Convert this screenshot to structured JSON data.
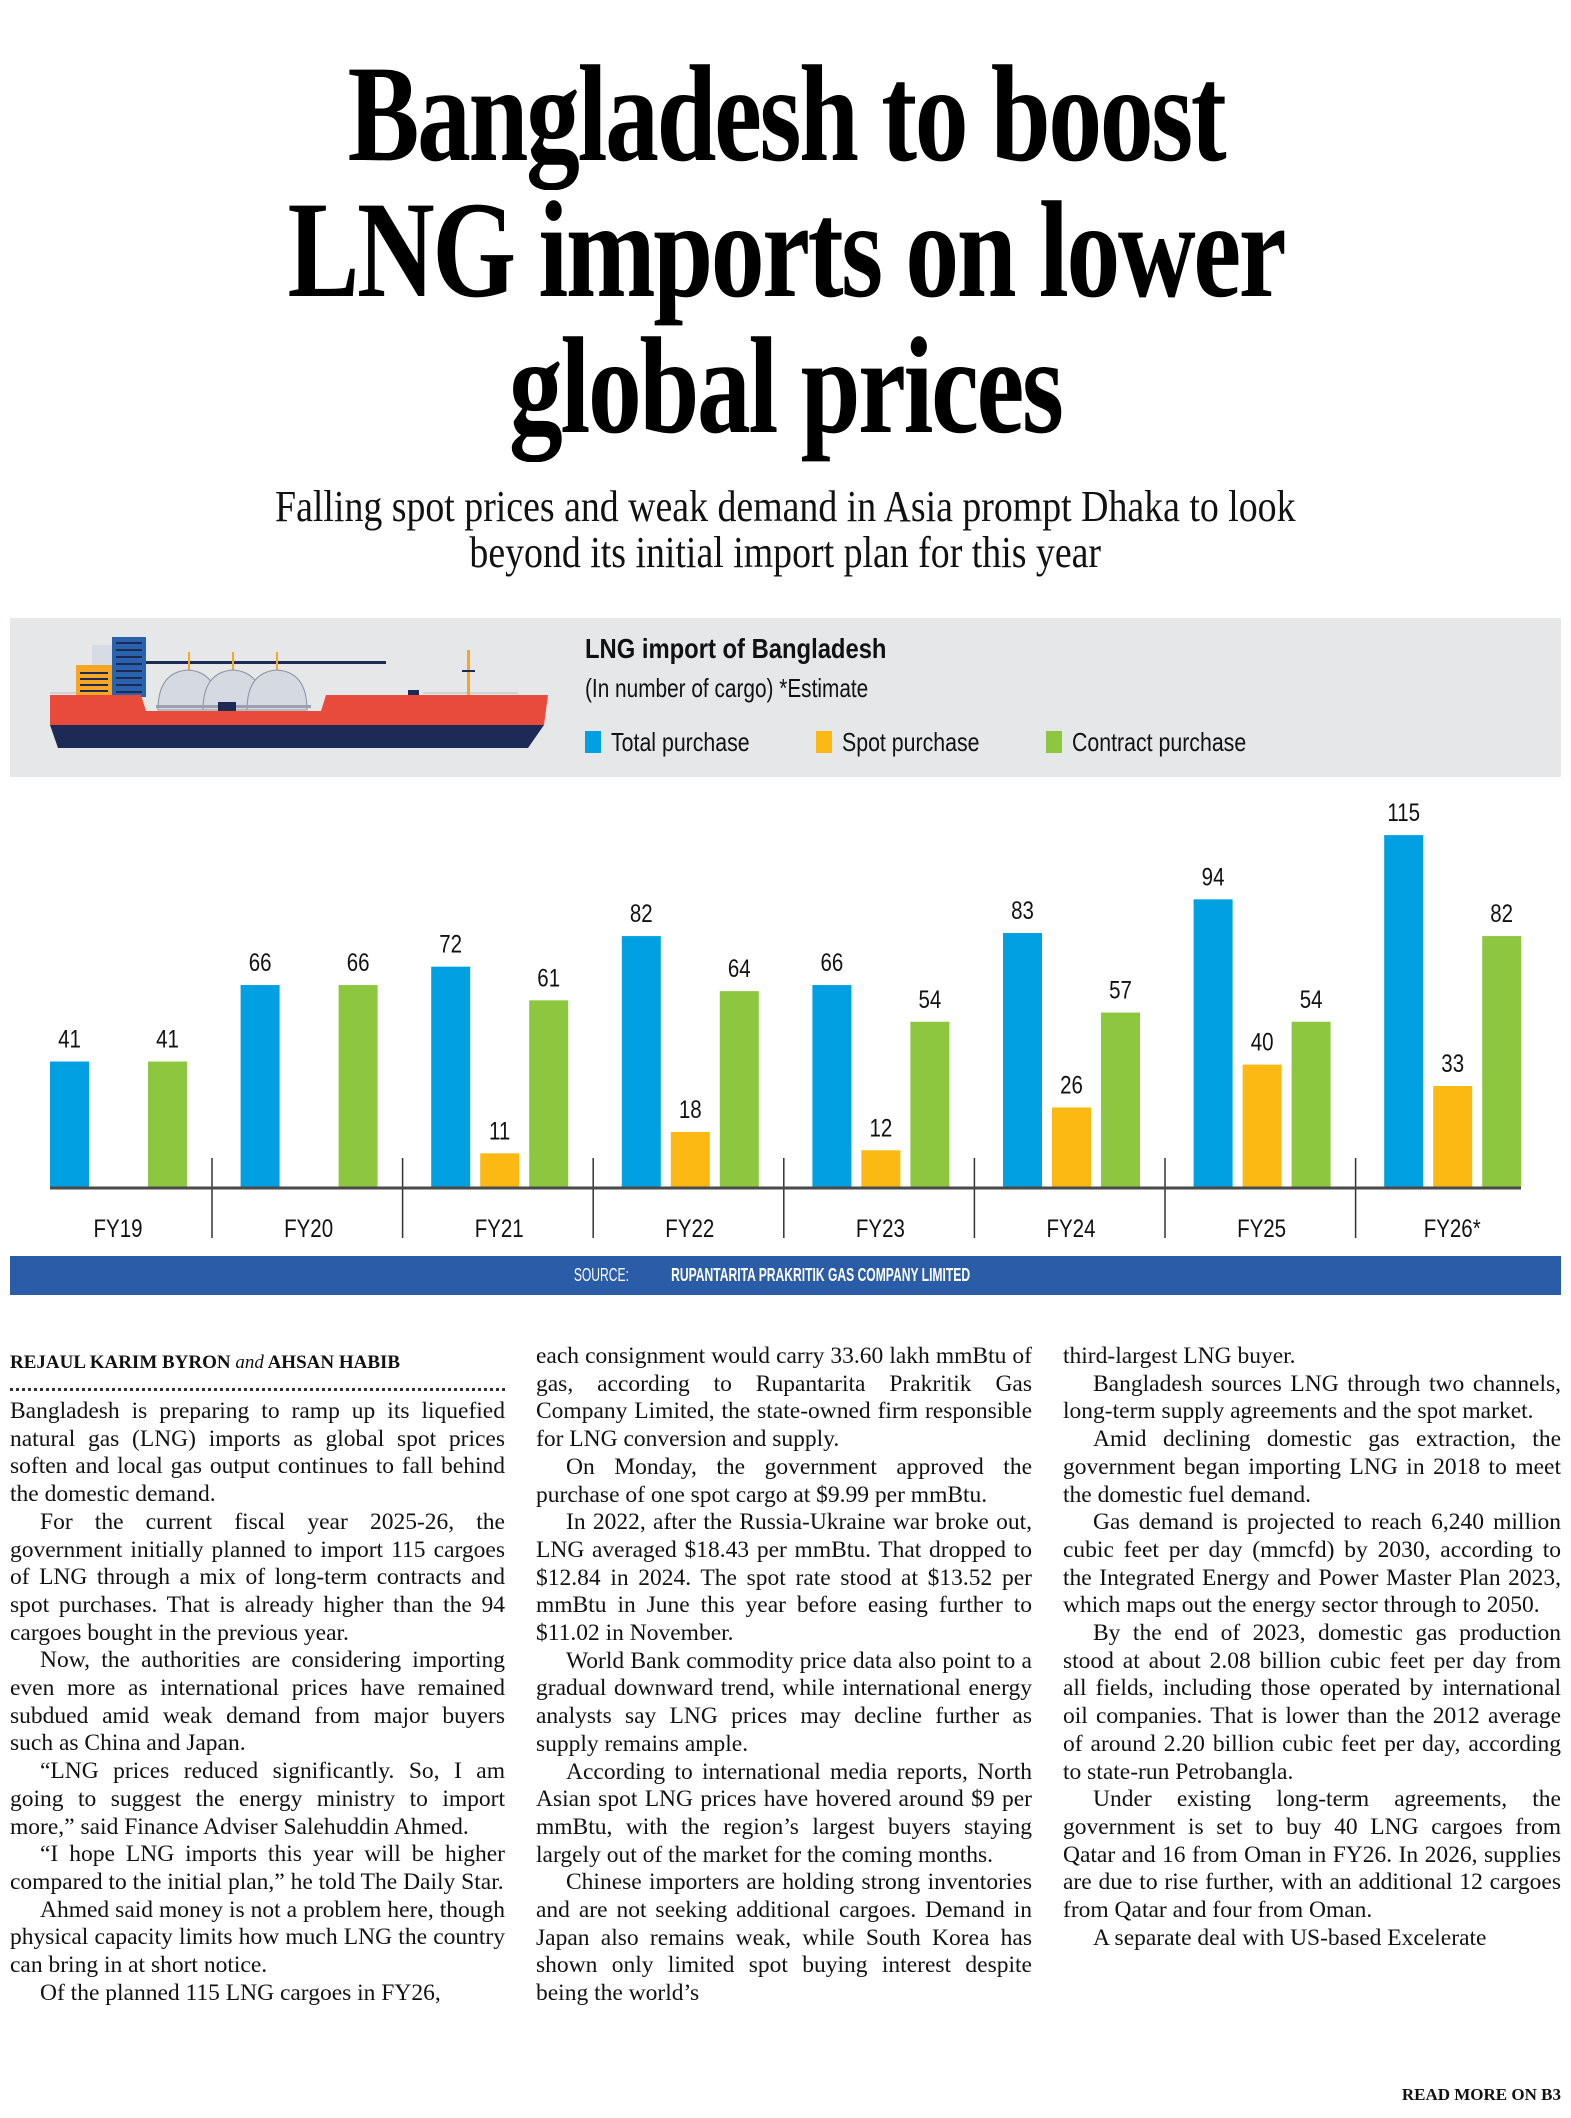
{
  "headline": {
    "lines": [
      "Bangladesh to boost",
      "LNG imports on lower",
      "global prices"
    ],
    "deck": [
      "Falling spot prices and weak demand in Asia prompt Dhaka to look",
      "beyond its initial import plan for this year"
    ]
  },
  "chart_data": {
    "type": "bar",
    "title": "LNG import of Bangladesh",
    "subtitle": "(In number of cargo) *Estimate",
    "xlabel": "",
    "ylabel": "",
    "ylim": [
      0,
      120
    ],
    "grid": false,
    "legend_position": "top",
    "categories": [
      "FY19",
      "FY20",
      "FY21",
      "FY22",
      "FY23",
      "FY24",
      "FY25",
      "FY26*"
    ],
    "series": [
      {
        "name": "Total purchase",
        "color": "#00a0e3",
        "values": [
          41,
          66,
          72,
          82,
          66,
          83,
          94,
          115
        ]
      },
      {
        "name": "Spot purchase",
        "color": "#fdb913",
        "values": [
          null,
          null,
          11,
          18,
          12,
          26,
          40,
          33
        ]
      },
      {
        "name": "Contract purchase",
        "color": "#8dc63f",
        "values": [
          41,
          66,
          61,
          64,
          54,
          57,
          54,
          82
        ]
      }
    ],
    "source_prefix": "SOURCE:",
    "source_name": "RUPANTARITA PRAKRITIK GAS COMPANY LIMITED"
  },
  "illustration": {
    "icon": "lng-tanker-ship-icon"
  },
  "colors": {
    "source_band": "#2b5ca8",
    "panel": "#e6e7e9",
    "hull_red": "#e84b3c",
    "hull_navy": "#1c2a55"
  },
  "article": {
    "byline": {
      "author1": "REJAUL KARIM BYRON",
      "conj": "and",
      "author2": "AHSAN HABIB"
    },
    "columns": [
      [
        {
          "indent": false,
          "text": "Bangladesh is preparing to ramp up its liquefied natural gas (LNG) imports as global spot prices soften and local gas output continues to fall behind the domestic demand."
        },
        {
          "indent": true,
          "text": "For the current fiscal year 2025-26, the government initially planned to import 115 cargoes of LNG through a mix of long-term contracts and spot purchases. That is already higher than the 94 cargoes bought in the previous year."
        },
        {
          "indent": true,
          "text": "Now, the authorities are considering importing even more as international prices have remained subdued amid weak demand from major buyers such as China and Japan."
        },
        {
          "indent": true,
          "text": "“LNG prices reduced significantly. So, I am going to suggest the energy ministry to import more,” said Finance Adviser Salehuddin Ahmed."
        },
        {
          "indent": true,
          "text": "“I hope LNG imports this year will be higher compared to the initial plan,” he told The Daily Star."
        },
        {
          "indent": true,
          "text": "Ahmed said money is not a problem here, though physical capacity limits how much LNG the country can bring in at short notice."
        },
        {
          "indent": true,
          "text": "Of the planned 115 LNG cargoes in FY26,"
        }
      ],
      [
        {
          "indent": false,
          "text": "each consignment would carry 33.60 lakh mmBtu of gas, according to Rupantarita Prakritik Gas Company Limited, the state-owned firm responsible for LNG conversion and supply."
        },
        {
          "indent": true,
          "text": "On Monday, the government approved the purchase of one spot cargo at $9.99 per mmBtu."
        },
        {
          "indent": true,
          "text": "In 2022, after the Russia-Ukraine war broke out, LNG averaged $18.43 per mmBtu. That dropped to $12.84 in 2024. The spot rate stood at $13.52 per mmBtu in June this year before easing further to $11.02 in November."
        },
        {
          "indent": true,
          "text": "World Bank commodity price data also point to a gradual downward trend, while international energy analysts say LNG prices may decline further as supply remains ample."
        },
        {
          "indent": true,
          "text": "According to international media reports, North Asian spot LNG prices have hovered around $9 per mmBtu, with the region’s largest buyers staying largely out of the market for the coming months."
        },
        {
          "indent": true,
          "text": "Chinese importers are holding strong inventories and are not seeking additional cargoes. Demand in Japan also remains weak, while South Korea has shown only limited spot buying interest despite being the world’s"
        }
      ],
      [
        {
          "indent": false,
          "text": "third-largest LNG buyer."
        },
        {
          "indent": true,
          "text": "Bangladesh sources LNG through two channels, long-term supply agreements and the spot market."
        },
        {
          "indent": true,
          "text": "Amid declining domestic gas extraction, the government began importing LNG in 2018 to meet the domestic fuel demand."
        },
        {
          "indent": true,
          "text": "Gas demand is projected to reach 6,240 million cubic feet per day (mmcfd) by 2030, according to the Integrated Energy and Power Master Plan 2023, which maps out the energy sector through to 2050."
        },
        {
          "indent": true,
          "text": "By the end of 2023, domestic gas production stood at about 2.08 billion cubic feet per day from all fields, including those operated by international oil companies. That is lower than the 2012 average of around 2.20 billion cubic feet per day, according to state-run Petrobangla."
        },
        {
          "indent": true,
          "text": "Under existing long-term agreements, the government is set to buy 40 LNG cargoes from Qatar and 16 from Oman in FY26. In 2026, supplies are due to rise further, with an additional 12 cargoes from Qatar and four from Oman."
        },
        {
          "indent": true,
          "text": "A separate deal with US-based Excelerate"
        }
      ]
    ],
    "read_more": "READ MORE ON B3"
  }
}
